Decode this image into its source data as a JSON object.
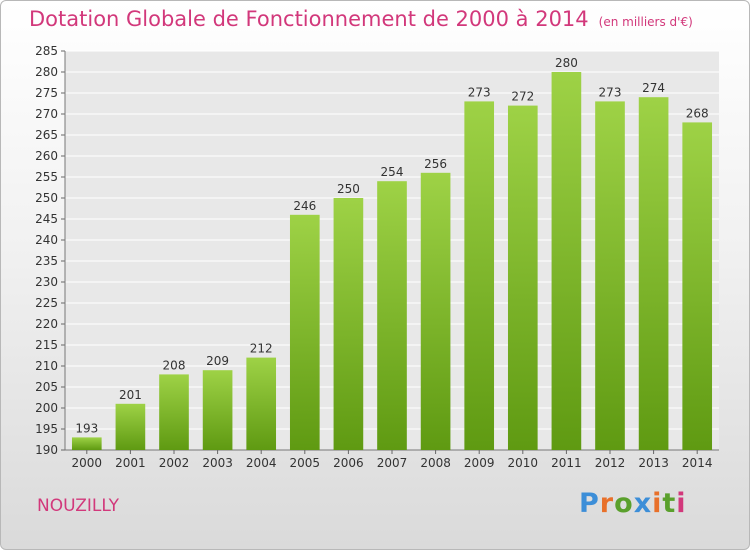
{
  "header": {
    "title": "Dotation Globale de Fonctionnement de 2000 à 2014",
    "unit": "(en milliers d'€)"
  },
  "footer": {
    "commune": "NOUZILLY",
    "logo": "Proxiti"
  },
  "colors": {
    "title": "#d2387b",
    "bar_top": "#9ed246",
    "bar_bottom": "#5f9a12",
    "logo_letters": [
      "#3c8ed8",
      "#e8702a",
      "#5aa02c",
      "#3c8ed8",
      "#e8702a",
      "#5aa02c",
      "#d2387b"
    ]
  },
  "chart_data": {
    "type": "bar",
    "categories": [
      "2000",
      "2001",
      "2002",
      "2003",
      "2004",
      "2005",
      "2006",
      "2007",
      "2008",
      "2009",
      "2010",
      "2011",
      "2012",
      "2013",
      "2014"
    ],
    "values": [
      193,
      201,
      208,
      209,
      212,
      246,
      250,
      254,
      256,
      273,
      272,
      280,
      273,
      274,
      268
    ],
    "ylim": [
      190,
      285
    ],
    "ytick_step": 5,
    "grid": true
  }
}
